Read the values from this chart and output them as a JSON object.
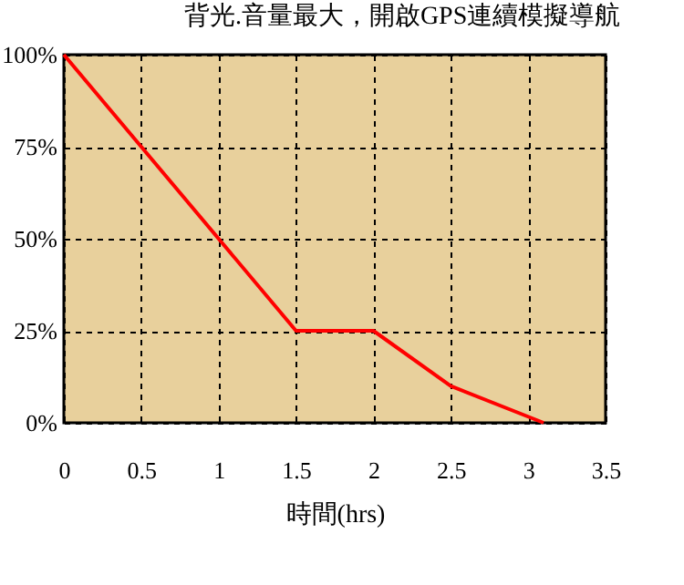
{
  "chart_data": {
    "type": "line",
    "title": "背光.音量最大，開啟GPS連續模擬導航",
    "xlabel": "時間(hrs)",
    "x": [
      0,
      0.5,
      1,
      1.5,
      2,
      2.5,
      3.1
    ],
    "series": [
      {
        "color": "#ff0000",
        "values": [
          100,
          75,
          50,
          25,
          25,
          10,
          0
        ]
      }
    ],
    "xlim": [
      0,
      3.5
    ],
    "xticks": [
      0,
      0.5,
      1,
      1.5,
      2,
      2.5,
      3,
      3.5
    ],
    "ylim": [
      0,
      100
    ],
    "yticks": [
      {
        "value": 0,
        "label": "0%"
      },
      {
        "value": 25,
        "label": "25%"
      },
      {
        "value": 50,
        "label": "50%"
      },
      {
        "value": 75,
        "label": "75%"
      },
      {
        "value": 100,
        "label": "100%"
      }
    ],
    "grid": true,
    "marker": "none",
    "line_style": "solid"
  }
}
